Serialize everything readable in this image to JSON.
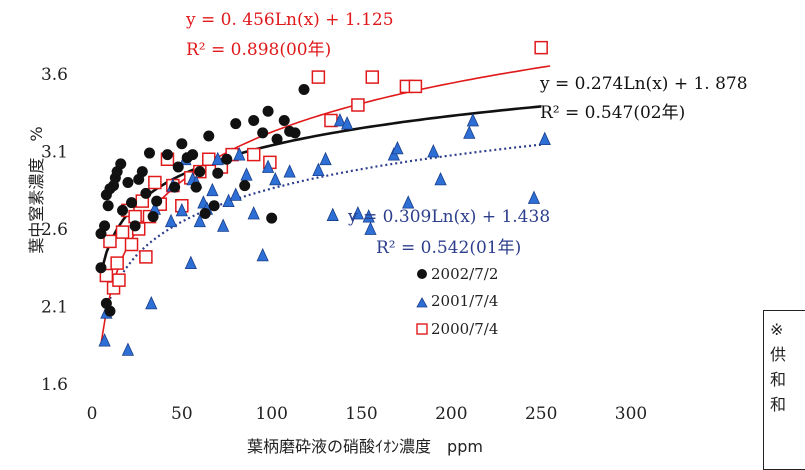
{
  "chart_data": {
    "type": "scatter",
    "xlabel": "葉柄磨砕液の硝酸ｲｵﾝ濃度　ppm",
    "ylabel": "葉中窒素濃度　%",
    "xlim": [
      0,
      300
    ],
    "ylim": [
      1.6,
      3.6
    ],
    "xticks": [
      "0",
      "50",
      "100",
      "150",
      "200",
      "250",
      "300"
    ],
    "yticks": [
      "1.6",
      "2.1",
      "2.6",
      "3.1",
      "3.6"
    ],
    "grid": false,
    "legend_position": "center-right",
    "series": [
      {
        "name": "2002/7/2",
        "marker": "circle",
        "color": "#111111",
        "fit": {
          "a": 0.274,
          "b": 1.878,
          "style": "solid",
          "color": "#111111",
          "equation": "y = 0.274Ln(x) + 1. 878",
          "r2": "R² = 0.547(02年)",
          "x_range": [
            5,
            250
          ]
        },
        "points": [
          [
            5,
            2.57
          ],
          [
            5,
            2.35
          ],
          [
            7,
            2.62
          ],
          [
            8,
            2.82
          ],
          [
            9,
            2.75
          ],
          [
            10,
            2.86
          ],
          [
            12,
            2.88
          ],
          [
            13,
            2.93
          ],
          [
            14,
            2.97
          ],
          [
            16,
            3.02
          ],
          [
            17,
            2.72
          ],
          [
            20,
            2.9
          ],
          [
            22,
            2.77
          ],
          [
            24,
            2.62
          ],
          [
            26,
            2.92
          ],
          [
            28,
            2.97
          ],
          [
            30,
            2.83
          ],
          [
            32,
            3.09
          ],
          [
            34,
            2.68
          ],
          [
            36,
            2.78
          ],
          [
            42,
            3.08
          ],
          [
            46,
            2.87
          ],
          [
            48,
            3.0
          ],
          [
            50,
            3.15
          ],
          [
            53,
            3.06
          ],
          [
            56,
            3.08
          ],
          [
            58,
            2.87
          ],
          [
            60,
            2.97
          ],
          [
            63,
            2.7
          ],
          [
            65,
            3.2
          ],
          [
            68,
            2.75
          ],
          [
            70,
            2.96
          ],
          [
            75,
            3.05
          ],
          [
            80,
            3.28
          ],
          [
            85,
            2.88
          ],
          [
            90,
            3.3
          ],
          [
            95,
            3.22
          ],
          [
            98,
            3.36
          ],
          [
            100,
            2.67
          ],
          [
            103,
            3.18
          ],
          [
            107,
            3.3
          ],
          [
            110,
            3.23
          ],
          [
            113,
            3.22
          ],
          [
            118,
            3.5
          ],
          [
            10,
            2.07
          ],
          [
            8,
            2.12
          ]
        ]
      },
      {
        "name": "2001/7/4",
        "marker": "triangle",
        "color": "#2e6fd6",
        "fit": {
          "a": 0.309,
          "b": 1.438,
          "style": "dotted",
          "color": "#2c3e8c",
          "equation": "y = 0.309Ln(x) + 1.438",
          "r2": "R² = 0.542(01年)",
          "x_range": [
            10,
            250
          ]
        },
        "points": [
          [
            7,
            1.88
          ],
          [
            8,
            2.06
          ],
          [
            20,
            1.82
          ],
          [
            33,
            2.12
          ],
          [
            35,
            2.73
          ],
          [
            44,
            2.65
          ],
          [
            45,
            2.88
          ],
          [
            50,
            2.72
          ],
          [
            52,
            3.05
          ],
          [
            55,
            2.38
          ],
          [
            56,
            2.92
          ],
          [
            58,
            2.9
          ],
          [
            60,
            2.65
          ],
          [
            62,
            2.77
          ],
          [
            64,
            2.73
          ],
          [
            67,
            2.85
          ],
          [
            70,
            3.05
          ],
          [
            73,
            2.62
          ],
          [
            76,
            2.78
          ],
          [
            80,
            2.82
          ],
          [
            82,
            3.08
          ],
          [
            86,
            2.95
          ],
          [
            90,
            2.7
          ],
          [
            95,
            2.43
          ],
          [
            98,
            3.0
          ],
          [
            102,
            2.92
          ],
          [
            110,
            2.97
          ],
          [
            126,
            2.98
          ],
          [
            130,
            3.05
          ],
          [
            134,
            2.69
          ],
          [
            138,
            3.3
          ],
          [
            142,
            3.28
          ],
          [
            148,
            2.7
          ],
          [
            154,
            2.68
          ],
          [
            155,
            2.6
          ],
          [
            168,
            3.08
          ],
          [
            170,
            3.12
          ],
          [
            176,
            2.77
          ],
          [
            190,
            3.1
          ],
          [
            194,
            2.92
          ],
          [
            210,
            3.22
          ],
          [
            212,
            3.3
          ],
          [
            246,
            2.8
          ],
          [
            252,
            3.18
          ]
        ]
      },
      {
        "name": "2000/7/4",
        "marker": "square",
        "color": "#e0191b",
        "fit": {
          "a": 0.456,
          "b": 1.125,
          "style": "solid",
          "color": "#e0191b",
          "equation": "y = 0. 456Ln(x) + 1.125",
          "r2": "R² = 0.898(00年)",
          "x_range": [
            5,
            255
          ]
        },
        "points": [
          [
            8,
            2.3
          ],
          [
            10,
            2.52
          ],
          [
            12,
            2.22
          ],
          [
            14,
            2.38
          ],
          [
            15,
            2.27
          ],
          [
            17,
            2.58
          ],
          [
            20,
            2.72
          ],
          [
            22,
            2.5
          ],
          [
            24,
            2.68
          ],
          [
            26,
            2.6
          ],
          [
            28,
            2.78
          ],
          [
            30,
            2.42
          ],
          [
            32,
            2.68
          ],
          [
            35,
            2.9
          ],
          [
            38,
            2.76
          ],
          [
            42,
            3.05
          ],
          [
            45,
            2.88
          ],
          [
            50,
            2.75
          ],
          [
            55,
            2.93
          ],
          [
            60,
            2.97
          ],
          [
            65,
            3.05
          ],
          [
            72,
            3.0
          ],
          [
            78,
            3.08
          ],
          [
            90,
            3.08
          ],
          [
            99,
            3.03
          ],
          [
            126,
            3.58
          ],
          [
            133,
            3.3
          ],
          [
            148,
            3.4
          ],
          [
            156,
            3.58
          ],
          [
            175,
            3.52
          ],
          [
            180,
            3.52
          ],
          [
            250,
            3.77
          ]
        ]
      }
    ],
    "note_lines": [
      "※",
      "供",
      "和",
      "和"
    ]
  }
}
